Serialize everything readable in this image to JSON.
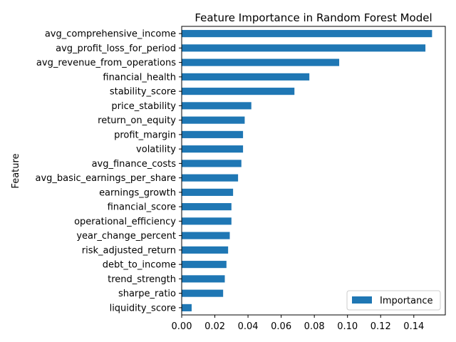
{
  "chart_data": {
    "type": "bar",
    "orientation": "horizontal",
    "title": "Feature Importance in Random Forest Model",
    "xlabel": "",
    "ylabel": "Feature",
    "xlim": [
      0,
      0.159
    ],
    "xticks": [
      "0.00",
      "0.02",
      "0.04",
      "0.06",
      "0.08",
      "0.10",
      "0.12",
      "0.14"
    ],
    "grid": false,
    "legend_position": "lower-right",
    "bar_color": "#1f77b4",
    "categories": [
      "avg_comprehensive_income",
      "avg_profit_loss_for_period",
      "avg_revenue_from_operations",
      "financial_health",
      "stability_score",
      "price_stability",
      "return_on_equity",
      "profit_margin",
      "volatility",
      "avg_finance_costs",
      "avg_basic_earnings_per_share",
      "earnings_growth",
      "financial_score",
      "operational_efficiency",
      "year_change_percent",
      "risk_adjusted_return",
      "debt_to_income",
      "trend_strength",
      "sharpe_ratio",
      "liquidity_score"
    ],
    "series": [
      {
        "name": "Importance",
        "values": [
          0.151,
          0.147,
          0.095,
          0.077,
          0.068,
          0.042,
          0.038,
          0.037,
          0.037,
          0.036,
          0.034,
          0.031,
          0.03,
          0.03,
          0.029,
          0.028,
          0.027,
          0.026,
          0.025,
          0.006
        ]
      }
    ]
  }
}
